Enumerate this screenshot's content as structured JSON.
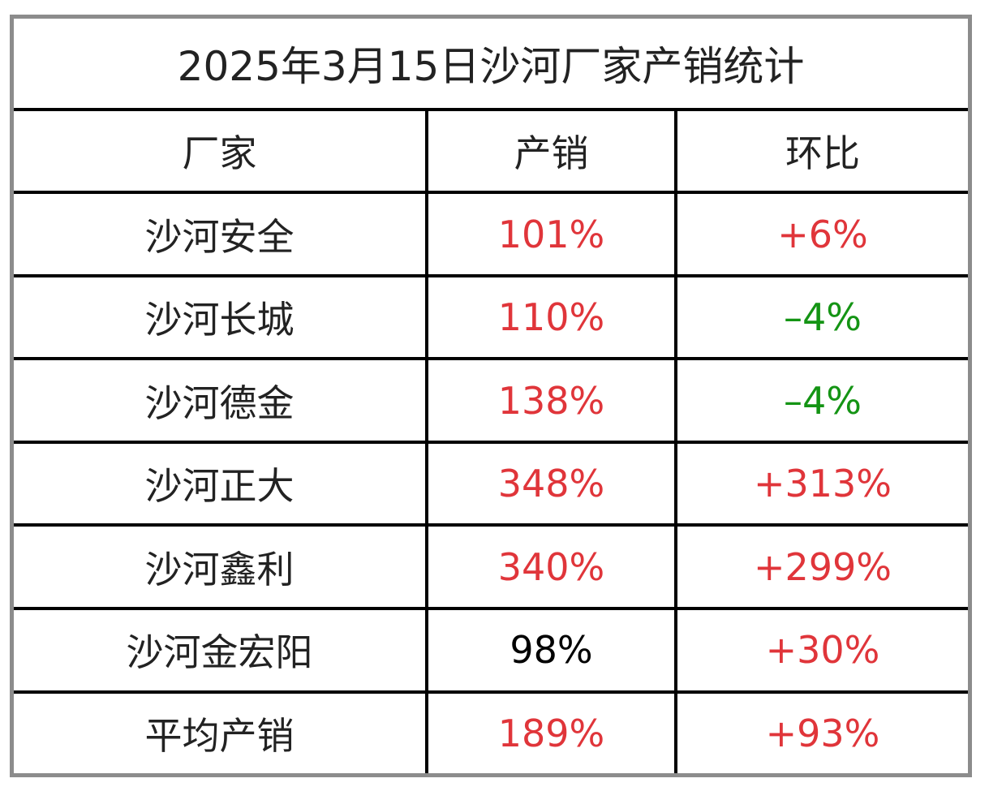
{
  "title": "2025年3月15日沙河厂家产销统计",
  "headers": [
    "厂家",
    "产销",
    "环比"
  ],
  "colors": {
    "red": "#e0353a",
    "green": "#149414",
    "black": "#000000",
    "text": "#222222"
  },
  "rows": [
    {
      "name": "沙河安全",
      "sales": "101%",
      "sales_color": "red",
      "change": "+6%",
      "change_color": "red"
    },
    {
      "name": "沙河长城",
      "sales": "110%",
      "sales_color": "red",
      "change": "–4%",
      "change_color": "green"
    },
    {
      "name": "沙河德金",
      "sales": "138%",
      "sales_color": "red",
      "change": "–4%",
      "change_color": "green"
    },
    {
      "name": "沙河正大",
      "sales": "348%",
      "sales_color": "red",
      "change": "+313%",
      "change_color": "red"
    },
    {
      "name": "沙河鑫利",
      "sales": "340%",
      "sales_color": "red",
      "change": "+299%",
      "change_color": "red"
    },
    {
      "name": "沙河金宏阳",
      "sales": "98%",
      "sales_color": "black",
      "change": "+30%",
      "change_color": "red"
    },
    {
      "name": "平均产销",
      "sales": "189%",
      "sales_color": "red",
      "change": "+93%",
      "change_color": "red"
    }
  ]
}
